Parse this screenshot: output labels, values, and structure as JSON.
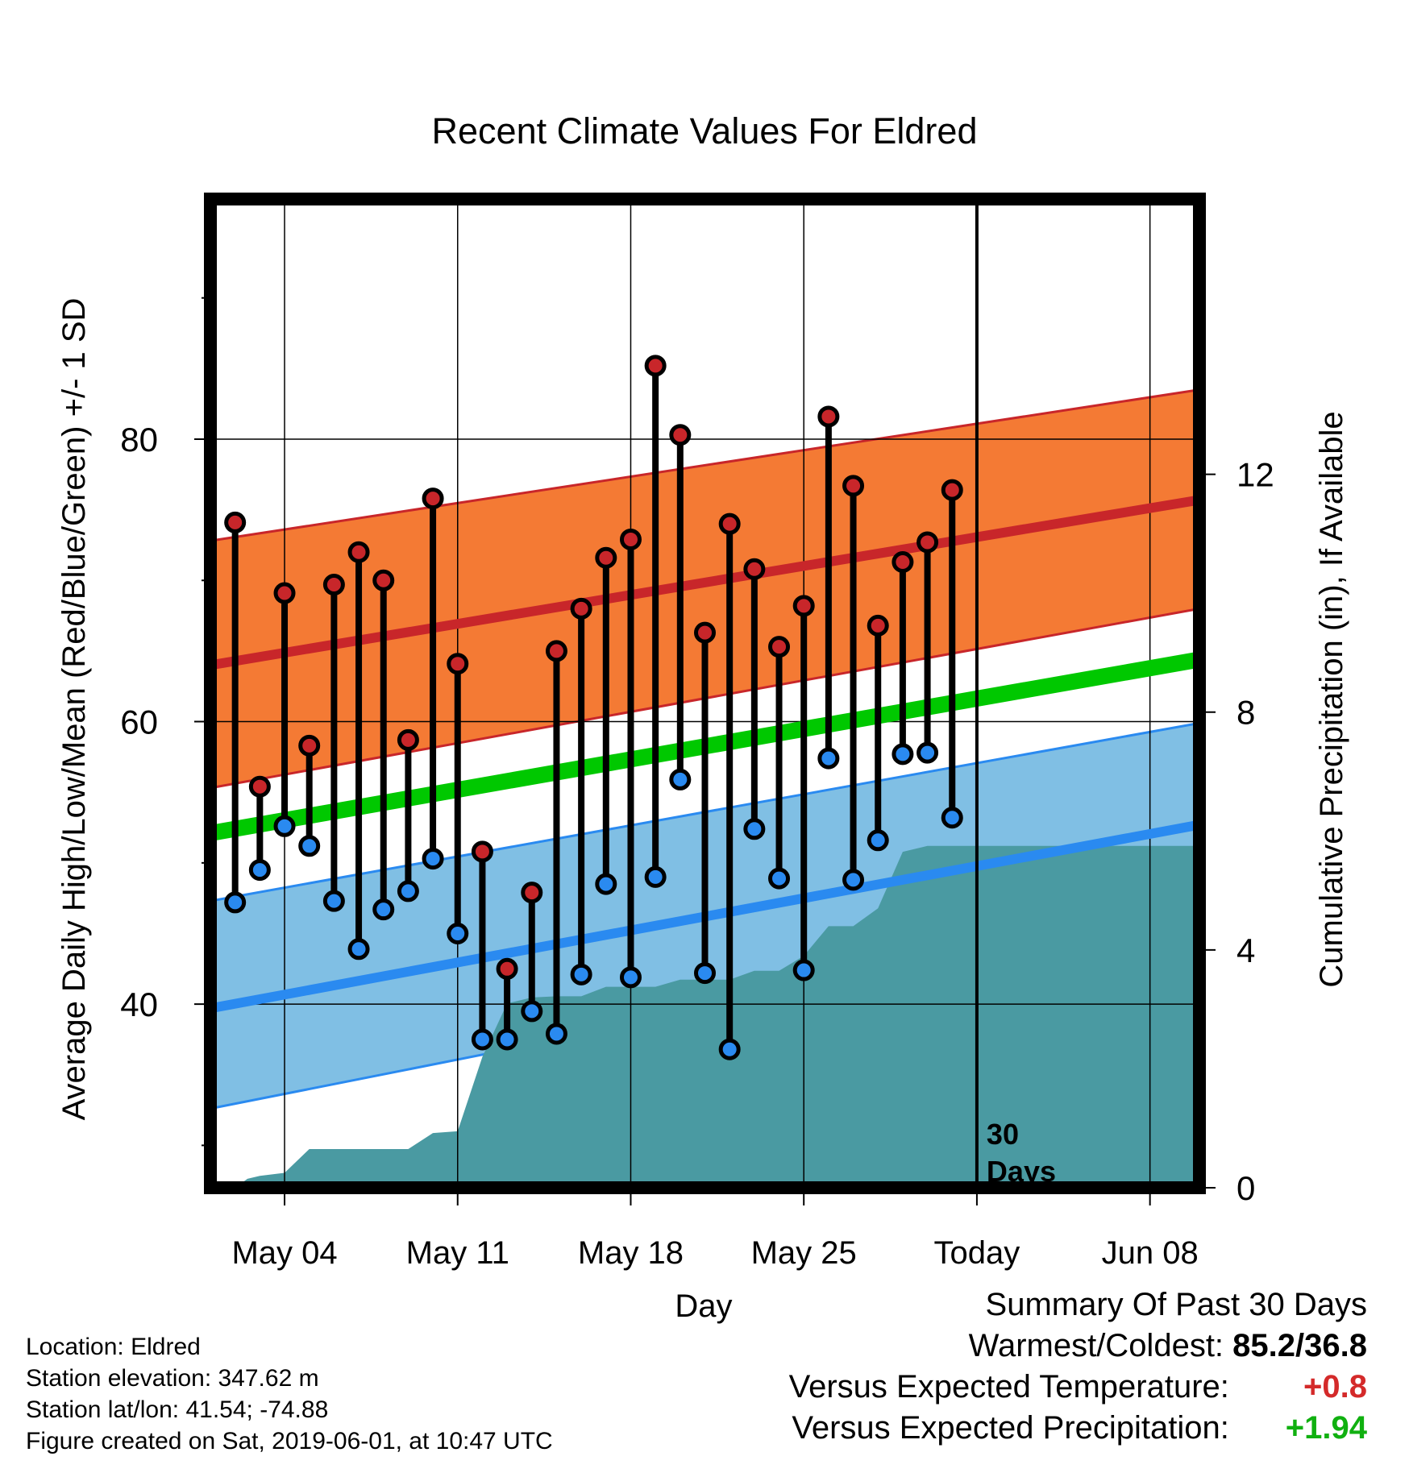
{
  "colors": {
    "high": "#c8262a",
    "low": "#2a8af0",
    "mean": "#00c800",
    "high_band": "#f47a34",
    "low_band": "#80bfe4",
    "precip": "#4a9aa2",
    "high_marker": "#c8262a",
    "low_marker": "#2a8af0",
    "anomaly_temp": "#d42a2a",
    "anomaly_precip": "#10b010"
  },
  "chart_data": {
    "type": "line",
    "title": "Recent Climate Values For Eldred",
    "xlabel": "Day",
    "ylabel": "Average Daily High/Low/Mean (Red/Blue/Green) +/- 1 SD",
    "ylabel_right": "Cumulative Precipitation (in), If Available",
    "x_tick_labels": [
      "May 04",
      "May 11",
      "May 18",
      "May 25",
      "Today",
      "Jun 08"
    ],
    "x_tick_days": [
      3,
      10,
      17,
      24,
      31,
      38
    ],
    "xlim": [
      0,
      40
    ],
    "y_ticks": [
      40,
      60,
      80
    ],
    "y_minor_ticks": [
      30,
      50,
      70,
      90
    ],
    "ylim": [
      27,
      97
    ],
    "y_right_ticks": [
      0,
      4,
      8,
      12
    ],
    "y_right_lim": [
      0,
      16.63
    ],
    "today_day": 31,
    "today_annotation": [
      "30",
      "Days"
    ],
    "normals": {
      "days": [
        0,
        40
      ],
      "high_mean": [
        64.0,
        75.7
      ],
      "high_upper": [
        72.8,
        83.5
      ],
      "high_lower": [
        55.3,
        68.0
      ],
      "low_mean": [
        39.7,
        52.7
      ],
      "low_upper": [
        47.3,
        59.9
      ],
      "low_lower": [
        32.6,
        46.5
      ],
      "mean_mean": [
        52.1,
        64.4
      ]
    },
    "daily": {
      "days": [
        1,
        2,
        3,
        4,
        5,
        6,
        7,
        8,
        9,
        10,
        11,
        12,
        13,
        14,
        15,
        16,
        17,
        18,
        19,
        20,
        21,
        22,
        23,
        24,
        25,
        26,
        27,
        28,
        29,
        30
      ],
      "high": [
        74.1,
        55.4,
        69.1,
        58.3,
        69.7,
        72.0,
        70.0,
        58.7,
        75.8,
        64.1,
        50.8,
        42.5,
        47.9,
        65.0,
        68.0,
        71.6,
        72.9,
        85.2,
        80.3,
        66.3,
        74.0,
        70.8,
        65.3,
        68.2,
        81.6,
        76.7,
        66.8,
        71.3,
        72.7,
        76.4
      ],
      "low": [
        47.2,
        49.5,
        52.6,
        51.2,
        47.3,
        43.9,
        46.7,
        48.0,
        50.3,
        45.0,
        37.5,
        37.5,
        39.5,
        37.9,
        42.1,
        48.5,
        41.9,
        49.0,
        55.9,
        42.2,
        36.8,
        52.4,
        48.9,
        42.4,
        57.4,
        48.8,
        51.6,
        57.7,
        57.8,
        53.2
      ]
    },
    "precip": {
      "days": [
        0,
        1,
        1.5,
        2,
        3,
        4,
        5,
        6,
        7,
        8,
        9,
        10,
        11,
        12,
        13,
        14,
        15,
        16,
        17,
        18,
        19,
        20,
        21,
        22,
        23,
        24,
        25,
        26,
        27,
        28,
        29,
        30,
        40
      ],
      "values": [
        0.0,
        0.0,
        0.15,
        0.2,
        0.25,
        0.65,
        0.65,
        0.65,
        0.65,
        0.65,
        0.92,
        0.95,
        2.2,
        3.1,
        3.2,
        3.22,
        3.22,
        3.38,
        3.38,
        3.38,
        3.5,
        3.5,
        3.5,
        3.65,
        3.65,
        3.9,
        4.4,
        4.4,
        4.7,
        5.65,
        5.75,
        5.75,
        5.75
      ]
    }
  },
  "info": {
    "location": "Location: Eldred",
    "elevation": "Station elevation: 347.62 m",
    "latlon": "Station lat/lon: 41.54; -74.88",
    "created": "Figure created on Sat, 2019-06-01, at 10:47 UTC"
  },
  "summary": {
    "title": "Summary Of Past 30 Days",
    "warmest_label": "Warmest/Coldest:",
    "warmest_value": "85.2/36.8",
    "temp_label": "Versus Expected Temperature:",
    "temp_value": "+0.8",
    "precip_label": "Versus Expected Precipitation:",
    "precip_value": "+1.94"
  }
}
